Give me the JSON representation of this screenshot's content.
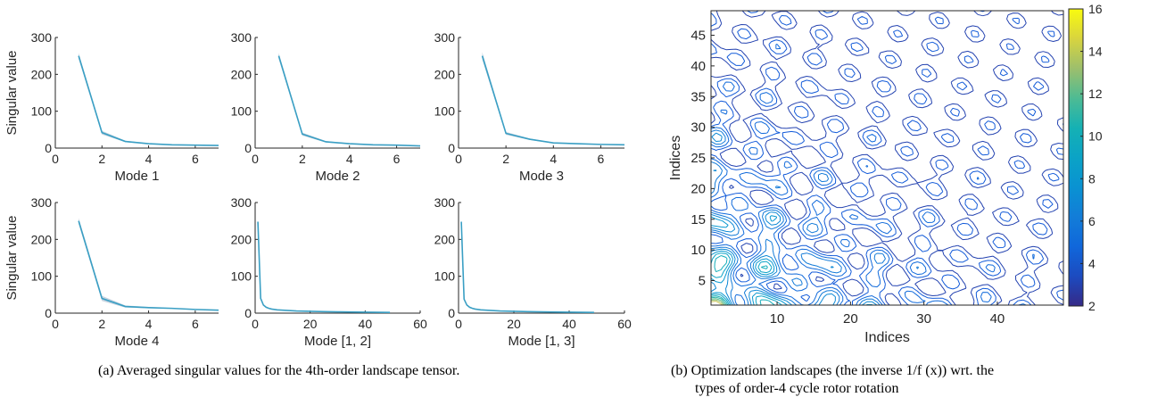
{
  "figure": {
    "caption_a": "(a)  Averaged singular values for the 4th-order landscape tensor.",
    "caption_b_line1": "(b)  Optimization landscapes (the inverse 1/f (x)) wrt. the",
    "caption_b_line2": "types of order-4 cycle rotor rotation"
  },
  "colors": {
    "series": "#3a9fc4",
    "band": "#b8c8d8",
    "axis": "#262626"
  },
  "chart_data": [
    {
      "type": "line",
      "panel": "mode-1",
      "xlabel": "Mode 1",
      "ylabel": "Singular value",
      "xlim": [
        0,
        7
      ],
      "ylim": [
        0,
        300
      ],
      "xticks": [
        0,
        2,
        4,
        6
      ],
      "yticks": [
        0,
        100,
        200,
        300
      ],
      "series": [
        {
          "x": [
            1,
            2,
            3,
            4,
            5,
            6,
            7
          ],
          "y": [
            250,
            42,
            18,
            12,
            9,
            8,
            7
          ],
          "spread": [
            8,
            5,
            2,
            1,
            1,
            1,
            1
          ]
        }
      ]
    },
    {
      "type": "line",
      "panel": "mode-2",
      "xlabel": "Mode 2",
      "ylabel": "",
      "xlim": [
        0,
        7
      ],
      "ylim": [
        0,
        300
      ],
      "xticks": [
        0,
        2,
        4,
        6
      ],
      "yticks": [
        0,
        100,
        200,
        300
      ],
      "series": [
        {
          "x": [
            1,
            2,
            3,
            4,
            5,
            6,
            7
          ],
          "y": [
            250,
            38,
            17,
            12,
            9,
            8,
            6
          ],
          "spread": [
            8,
            4,
            2,
            1,
            1,
            1,
            1
          ]
        }
      ]
    },
    {
      "type": "line",
      "panel": "mode-3",
      "xlabel": "Mode 3",
      "ylabel": "",
      "xlim": [
        0,
        7
      ],
      "ylim": [
        0,
        300
      ],
      "xticks": [
        0,
        2,
        4,
        6
      ],
      "yticks": [
        0,
        100,
        200,
        300
      ],
      "series": [
        {
          "x": [
            1,
            2,
            3,
            4,
            5,
            6,
            7
          ],
          "y": [
            250,
            40,
            24,
            14,
            12,
            10,
            9
          ],
          "spread": [
            10,
            4,
            2,
            1,
            1,
            1,
            1
          ]
        }
      ]
    },
    {
      "type": "line",
      "panel": "mode-4",
      "xlabel": "Mode 4",
      "ylabel": "Singular value",
      "xlim": [
        0,
        7
      ],
      "ylim": [
        0,
        300
      ],
      "xticks": [
        0,
        2,
        4,
        6
      ],
      "yticks": [
        0,
        100,
        200,
        300
      ],
      "series": [
        {
          "x": [
            1,
            2,
            3,
            4,
            5,
            6,
            7
          ],
          "y": [
            250,
            40,
            18,
            15,
            13,
            10,
            8
          ],
          "spread": [
            8,
            7,
            3,
            2,
            1,
            1,
            1
          ]
        }
      ]
    },
    {
      "type": "line",
      "panel": "mode-1-2",
      "xlabel": "Mode [1, 2]",
      "ylabel": "",
      "xlim": [
        0,
        60
      ],
      "ylim": [
        0,
        300
      ],
      "xticks": [
        0,
        20,
        40,
        60
      ],
      "yticks": [
        0,
        100,
        200,
        300
      ],
      "series": [
        {
          "x": [
            1,
            2,
            3,
            4,
            5,
            6,
            8,
            10,
            15,
            20,
            25,
            30,
            40,
            49
          ],
          "y": [
            248,
            40,
            22,
            16,
            13,
            11,
            9,
            8,
            6,
            5,
            4,
            3.5,
            2.5,
            2
          ],
          "spread": [
            3,
            3,
            2,
            1,
            1,
            1,
            1,
            1,
            1,
            1,
            1,
            1,
            1,
            1
          ]
        }
      ]
    },
    {
      "type": "line",
      "panel": "mode-1-3",
      "xlabel": "Mode [1, 3]",
      "ylabel": "",
      "xlim": [
        0,
        60
      ],
      "ylim": [
        0,
        300
      ],
      "xticks": [
        0,
        20,
        40,
        60
      ],
      "yticks": [
        0,
        100,
        200,
        300
      ],
      "series": [
        {
          "x": [
            1,
            2,
            3,
            4,
            5,
            6,
            8,
            10,
            15,
            20,
            25,
            30,
            40,
            49
          ],
          "y": [
            248,
            38,
            22,
            16,
            13,
            11,
            9,
            8,
            6,
            5,
            4,
            3.5,
            2.5,
            2
          ],
          "spread": [
            3,
            3,
            2,
            1,
            1,
            1,
            1,
            1,
            1,
            1,
            1,
            1,
            1,
            1
          ]
        }
      ]
    },
    {
      "type": "contour",
      "panel": "landscape",
      "xlabel": "Indices",
      "ylabel": "Indices",
      "xlim": [
        1,
        49
      ],
      "ylim": [
        1,
        49
      ],
      "xticks": [
        10,
        20,
        30,
        40
      ],
      "yticks": [
        5,
        10,
        15,
        20,
        25,
        30,
        35,
        40,
        45
      ],
      "colorbar": {
        "min": 2,
        "max": 16,
        "ticks": [
          2,
          4,
          6,
          8,
          10,
          12,
          14,
          16
        ],
        "colormap": "parula"
      },
      "levels": [
        3,
        4,
        5,
        6,
        7,
        8,
        9,
        10,
        11,
        12,
        13,
        14
      ]
    }
  ]
}
